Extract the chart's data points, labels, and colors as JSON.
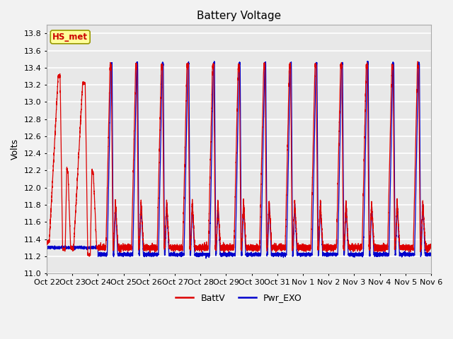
{
  "title": "Battery Voltage",
  "ylabel": "Volts",
  "ylim": [
    11.0,
    13.9
  ],
  "yticks": [
    11.0,
    11.2,
    11.4,
    11.6,
    11.8,
    12.0,
    12.2,
    12.4,
    12.6,
    12.8,
    13.0,
    13.2,
    13.4,
    13.6,
    13.8
  ],
  "xtick_labels": [
    "Oct 22",
    "Oct 23",
    "Oct 24",
    "Oct 25",
    "Oct 26",
    "Oct 27",
    "Oct 28",
    "Oct 29",
    "Oct 30",
    "Oct 31",
    "Nov 1",
    "Nov 2",
    "Nov 3",
    "Nov 4",
    "Nov 5",
    "Nov 6"
  ],
  "legend": [
    {
      "label": "BattV",
      "color": "#dd0000"
    },
    {
      "label": "Pwr_EXO",
      "color": "#0000cc"
    }
  ],
  "annotation_text": "HS_met",
  "annotation_color": "#cc0000",
  "annotation_bg": "#ffff99",
  "line_colors": {
    "battv": "#dd0000",
    "pwr_exo": "#0000cc"
  },
  "plot_bg": "#e8e8e8",
  "title_fontsize": 11,
  "tick_fontsize": 8,
  "fig_facecolor": "#f2f2f2"
}
